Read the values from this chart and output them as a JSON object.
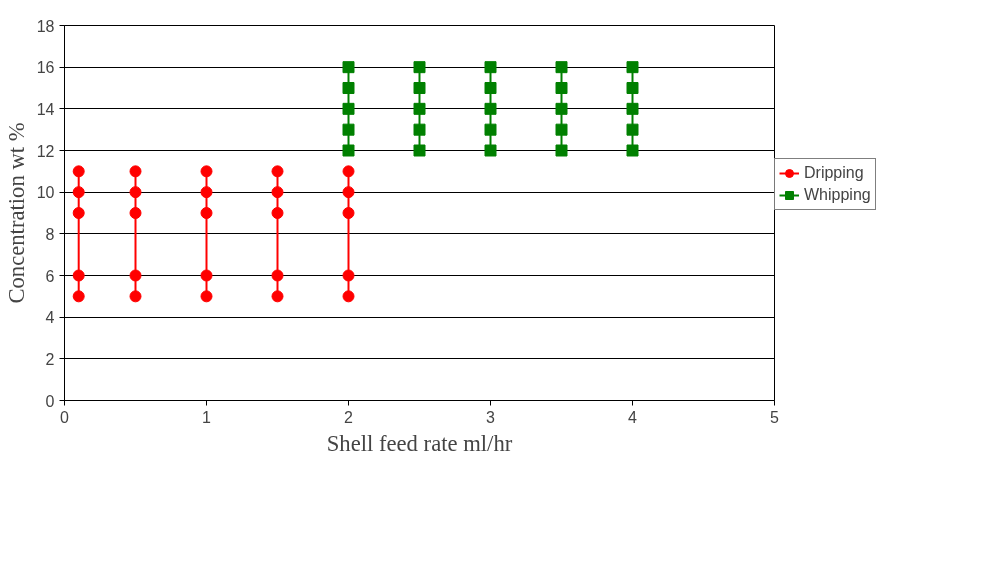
{
  "chart_data": {
    "type": "line",
    "xlabel": "Shell feed rate ml/hr",
    "ylabel": "Concentration wt %",
    "xlim": [
      0,
      5
    ],
    "xticks": [
      0,
      1,
      2,
      3,
      4,
      5
    ],
    "ylim": [
      0,
      18
    ],
    "yticks": [
      0,
      2,
      4,
      6,
      8,
      10,
      12,
      14,
      16,
      18
    ],
    "grid": "y",
    "legend": "right",
    "line_style": "solid",
    "series": [
      {
        "name": "Dripping",
        "color": "#ff0000",
        "marker": "circle",
        "x": [
          0.1,
          0.1,
          0.1,
          0.1,
          0.1,
          null,
          0.5,
          0.5,
          0.5,
          0.5,
          0.5,
          null,
          1,
          1,
          1,
          1,
          1,
          null,
          1.5,
          1.5,
          1.5,
          1.5,
          1.5,
          null,
          2,
          2,
          2,
          2,
          2
        ],
        "values": [
          5,
          6,
          9,
          10,
          11,
          null,
          5,
          6,
          9,
          10,
          11,
          null,
          5,
          6,
          9,
          10,
          11,
          null,
          5,
          6,
          9,
          10,
          11,
          null,
          5,
          6,
          9,
          10,
          11
        ]
      },
      {
        "name": "Whipping",
        "color": "#008000",
        "marker": "square",
        "x": [
          2,
          2,
          2,
          2,
          2,
          null,
          2.5,
          2.5,
          2.5,
          2.5,
          2.5,
          null,
          3,
          3,
          3,
          3,
          3,
          null,
          3.5,
          3.5,
          3.5,
          3.5,
          3.5,
          null,
          4,
          4,
          4,
          4,
          4
        ],
        "values": [
          12,
          13,
          14,
          15,
          16,
          null,
          12,
          13,
          14,
          15,
          16,
          null,
          12,
          13,
          14,
          15,
          16,
          null,
          12,
          13,
          14,
          15,
          16,
          null,
          12,
          13,
          14,
          15,
          16
        ]
      }
    ]
  }
}
